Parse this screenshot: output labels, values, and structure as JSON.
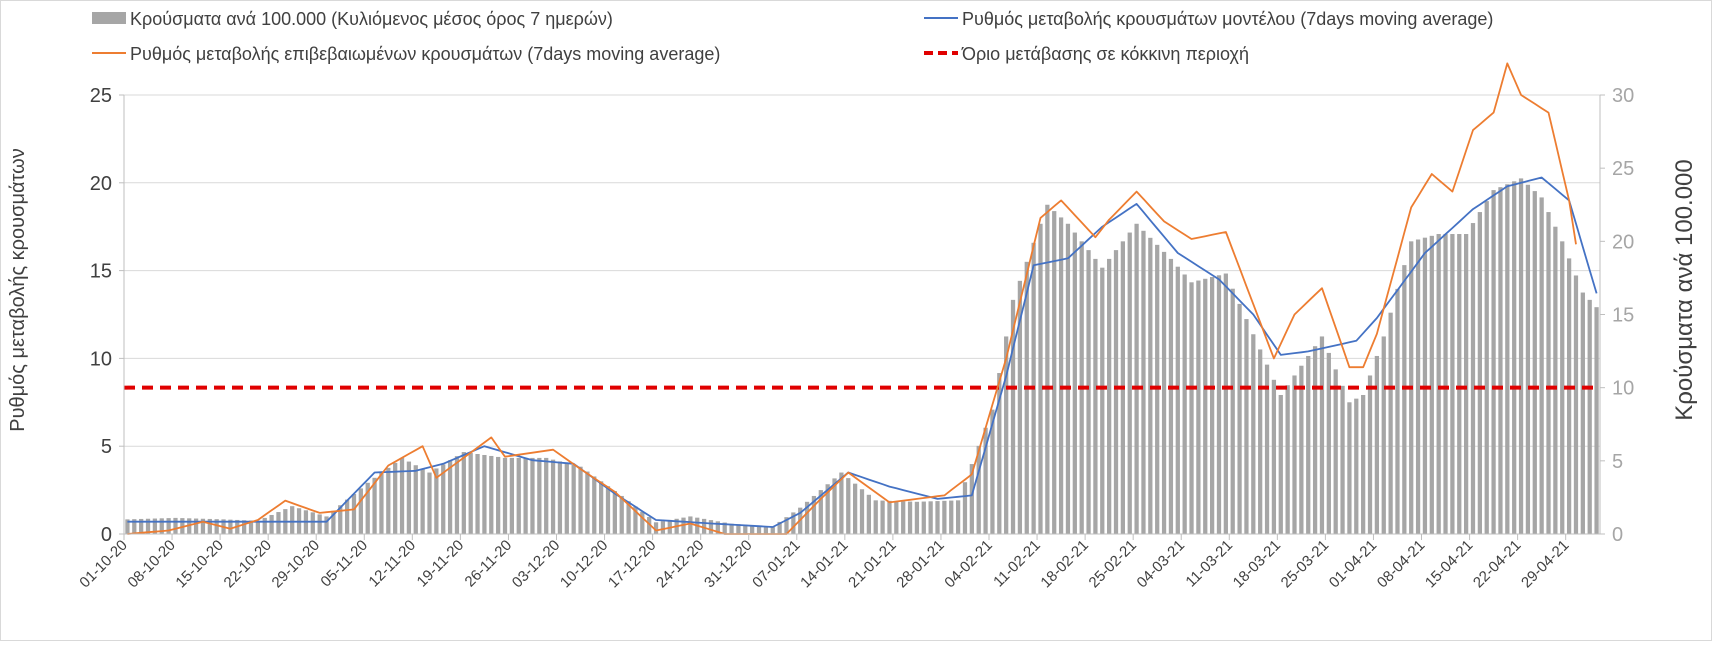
{
  "colors": {
    "bars": "#a6a6a6",
    "model_line": "#4472c4",
    "confirmed_line": "#ed7d31",
    "threshold": "#e00000",
    "grid": "#d9d9d9",
    "axis_text": "#404040",
    "right_axis": "#a6a6a6"
  },
  "chart_data": {
    "type": "bar+line",
    "legend": [
      {
        "key": "bars",
        "label": "Κρούσματα ανά 100.000 (Κυλιόμενος μέσος όρος 7 ημερών)",
        "marker": "bar"
      },
      {
        "key": "model",
        "label": "Ρυθμός μεταβολής κρουσμάτων μοντέλου (7days moving average)",
        "marker": "line"
      },
      {
        "key": "confirmed",
        "label": "Ρυθμός μεταβολής επιβεβαιωμένων κρουσμάτων (7days moving average)",
        "marker": "line"
      },
      {
        "key": "threshold",
        "label": "Όριο μετάβασης σε κόκκινη περιοχή",
        "marker": "dashed"
      }
    ],
    "legend_position": "top",
    "ylabel_left": "Ρυθμός μεταβολής κρουσμάτων",
    "ylabel_right": "Κρούσματα ανά 100.000",
    "ylim_left": [
      0,
      25
    ],
    "ylim_right": [
      0,
      30
    ],
    "yticks_left": [
      0,
      5,
      10,
      15,
      20,
      25
    ],
    "yticks_right": [
      0,
      5,
      10,
      15,
      20,
      25,
      30
    ],
    "grid": true,
    "date_start": "2020-10-01",
    "date_end": "2021-05-03",
    "x_tick_labels": [
      "01-10-20",
      "08-10-20",
      "15-10-20",
      "22-10-20",
      "29-10-20",
      "05-11-20",
      "12-11-20",
      "19-11-20",
      "26-11-20",
      "03-12-20",
      "10-12-20",
      "17-12-20",
      "24-12-20",
      "31-12-20",
      "07-01-21",
      "14-01-21",
      "21-01-21",
      "28-01-21",
      "04-02-21",
      "11-02-21",
      "18-02-21",
      "25-02-21",
      "04-03-21",
      "11-03-21",
      "18-03-21",
      "25-03-21",
      "01-04-21",
      "08-04-21",
      "15-04-21",
      "22-04-21",
      "29-04-21"
    ],
    "threshold_value": 10,
    "bars_key_points": [
      [
        "2020-10-01",
        1
      ],
      [
        "2020-10-08",
        1.1
      ],
      [
        "2020-10-15",
        1
      ],
      [
        "2020-10-20",
        0.9
      ],
      [
        "2020-10-25",
        1.9
      ],
      [
        "2020-10-30",
        1.2
      ],
      [
        "2020-11-05",
        3.5
      ],
      [
        "2020-11-10",
        5.2
      ],
      [
        "2020-11-14",
        4.2
      ],
      [
        "2020-11-19",
        5.6
      ],
      [
        "2020-11-25",
        5.2
      ],
      [
        "2020-12-01",
        5.2
      ],
      [
        "2020-12-06",
        4.6
      ],
      [
        "2020-12-12",
        2.6
      ],
      [
        "2020-12-17",
        0.8
      ],
      [
        "2020-12-22",
        1.2
      ],
      [
        "2020-12-28",
        0.7
      ],
      [
        "2021-01-03",
        0.5
      ],
      [
        "2021-01-07",
        1.8
      ],
      [
        "2021-01-13",
        4.2
      ],
      [
        "2021-01-18",
        2.3
      ],
      [
        "2021-01-24",
        2.2
      ],
      [
        "2021-01-30",
        2.3
      ],
      [
        "2021-02-04",
        8.5
      ],
      [
        "2021-02-07",
        16
      ],
      [
        "2021-02-12",
        22.5
      ],
      [
        "2021-02-15",
        21.2
      ],
      [
        "2021-02-20",
        18.2
      ],
      [
        "2021-02-25",
        21.2
      ],
      [
        "2021-03-02",
        18.8
      ],
      [
        "2021-03-05",
        17.2
      ],
      [
        "2021-03-10",
        17.8
      ],
      [
        "2021-03-18",
        9.5
      ],
      [
        "2021-03-24",
        13.5
      ],
      [
        "2021-03-28",
        9
      ],
      [
        "2021-03-30",
        9.5
      ],
      [
        "2021-04-02",
        13.5
      ],
      [
        "2021-04-06",
        20
      ],
      [
        "2021-04-10",
        20.5
      ],
      [
        "2021-04-14",
        20.5
      ],
      [
        "2021-04-18",
        23.5
      ],
      [
        "2021-04-22",
        24.3
      ],
      [
        "2021-04-25",
        23
      ],
      [
        "2021-04-28",
        20
      ],
      [
        "2021-05-01",
        16.5
      ],
      [
        "2021-05-02",
        16
      ],
      [
        "2021-05-03",
        15.5
      ]
    ],
    "model_key_points": [
      [
        "2020-10-01",
        0.7
      ],
      [
        "2020-10-15",
        0.7
      ],
      [
        "2020-10-30",
        0.7
      ],
      [
        "2020-11-06",
        3.5
      ],
      [
        "2020-11-12",
        3.6
      ],
      [
        "2020-11-16",
        4
      ],
      [
        "2020-11-22",
        5
      ],
      [
        "2020-11-29",
        4.2
      ],
      [
        "2020-12-05",
        4
      ],
      [
        "2020-12-11",
        2.3
      ],
      [
        "2020-12-17",
        0.8
      ],
      [
        "2020-12-25",
        0.6
      ],
      [
        "2021-01-03",
        0.4
      ],
      [
        "2021-01-07",
        1.2
      ],
      [
        "2021-01-14",
        3.5
      ],
      [
        "2021-01-20",
        2.7
      ],
      [
        "2021-01-27",
        2
      ],
      [
        "2021-02-01",
        2.2
      ],
      [
        "2021-02-06",
        9
      ],
      [
        "2021-02-10",
        15.3
      ],
      [
        "2021-02-15",
        15.7
      ],
      [
        "2021-02-20",
        17.5
      ],
      [
        "2021-02-25",
        18.8
      ],
      [
        "2021-03-03",
        16
      ],
      [
        "2021-03-09",
        14.5
      ],
      [
        "2021-03-14",
        12.5
      ],
      [
        "2021-03-18",
        10.2
      ],
      [
        "2021-03-22",
        10.4
      ],
      [
        "2021-03-29",
        11
      ],
      [
        "2021-04-01",
        12.3
      ],
      [
        "2021-04-08",
        16
      ],
      [
        "2021-04-15",
        18.5
      ],
      [
        "2021-04-20",
        19.8
      ],
      [
        "2021-04-25",
        20.3
      ],
      [
        "2021-04-29",
        19
      ],
      [
        "2021-05-03",
        13.7
      ]
    ],
    "confirmed_key_points": [
      [
        "2020-10-01",
        0
      ],
      [
        "2020-10-07",
        0.2
      ],
      [
        "2020-10-12",
        0.7
      ],
      [
        "2020-10-16",
        0.3
      ],
      [
        "2020-10-20",
        0.8
      ],
      [
        "2020-10-24",
        1.9
      ],
      [
        "2020-10-29",
        1.2
      ],
      [
        "2020-11-03",
        1.4
      ],
      [
        "2020-11-08",
        3.9
      ],
      [
        "2020-11-13",
        5
      ],
      [
        "2020-11-15",
        3.2
      ],
      [
        "2020-11-23",
        5.5
      ],
      [
        "2020-11-25",
        4.4
      ],
      [
        "2020-12-02",
        4.8
      ],
      [
        "2020-12-06",
        3.7
      ],
      [
        "2020-12-11",
        2.4
      ],
      [
        "2020-12-17",
        0.2
      ],
      [
        "2020-12-22",
        0.6
      ],
      [
        "2020-12-27",
        0
      ],
      [
        "2021-01-05",
        0
      ],
      [
        "2021-01-10",
        2
      ],
      [
        "2021-01-14",
        3.5
      ],
      [
        "2021-01-20",
        1.8
      ],
      [
        "2021-01-28",
        2.2
      ],
      [
        "2021-02-01",
        3.4
      ],
      [
        "2021-02-06",
        10
      ],
      [
        "2021-02-11",
        18
      ],
      [
        "2021-02-14",
        19
      ],
      [
        "2021-02-19",
        16.9
      ],
      [
        "2021-02-21",
        17.9
      ],
      [
        "2021-02-25",
        19.5
      ],
      [
        "2021-03-01",
        17.8
      ],
      [
        "2021-03-05",
        16.8
      ],
      [
        "2021-03-10",
        17.2
      ],
      [
        "2021-03-17",
        10
      ],
      [
        "2021-03-20",
        12.5
      ],
      [
        "2021-03-24",
        14
      ],
      [
        "2021-03-28",
        9.5
      ],
      [
        "2021-03-30",
        9.5
      ],
      [
        "2021-04-01",
        11.4
      ],
      [
        "2021-04-06",
        18.6
      ],
      [
        "2021-04-09",
        20.5
      ],
      [
        "2021-04-12",
        19.5
      ],
      [
        "2021-04-15",
        23
      ],
      [
        "2021-04-18",
        24
      ],
      [
        "2021-04-20",
        26.8
      ],
      [
        "2021-04-22",
        25
      ],
      [
        "2021-04-26",
        24
      ],
      [
        "2021-04-29",
        19
      ],
      [
        "2021-04-30",
        16.5
      ]
    ]
  }
}
